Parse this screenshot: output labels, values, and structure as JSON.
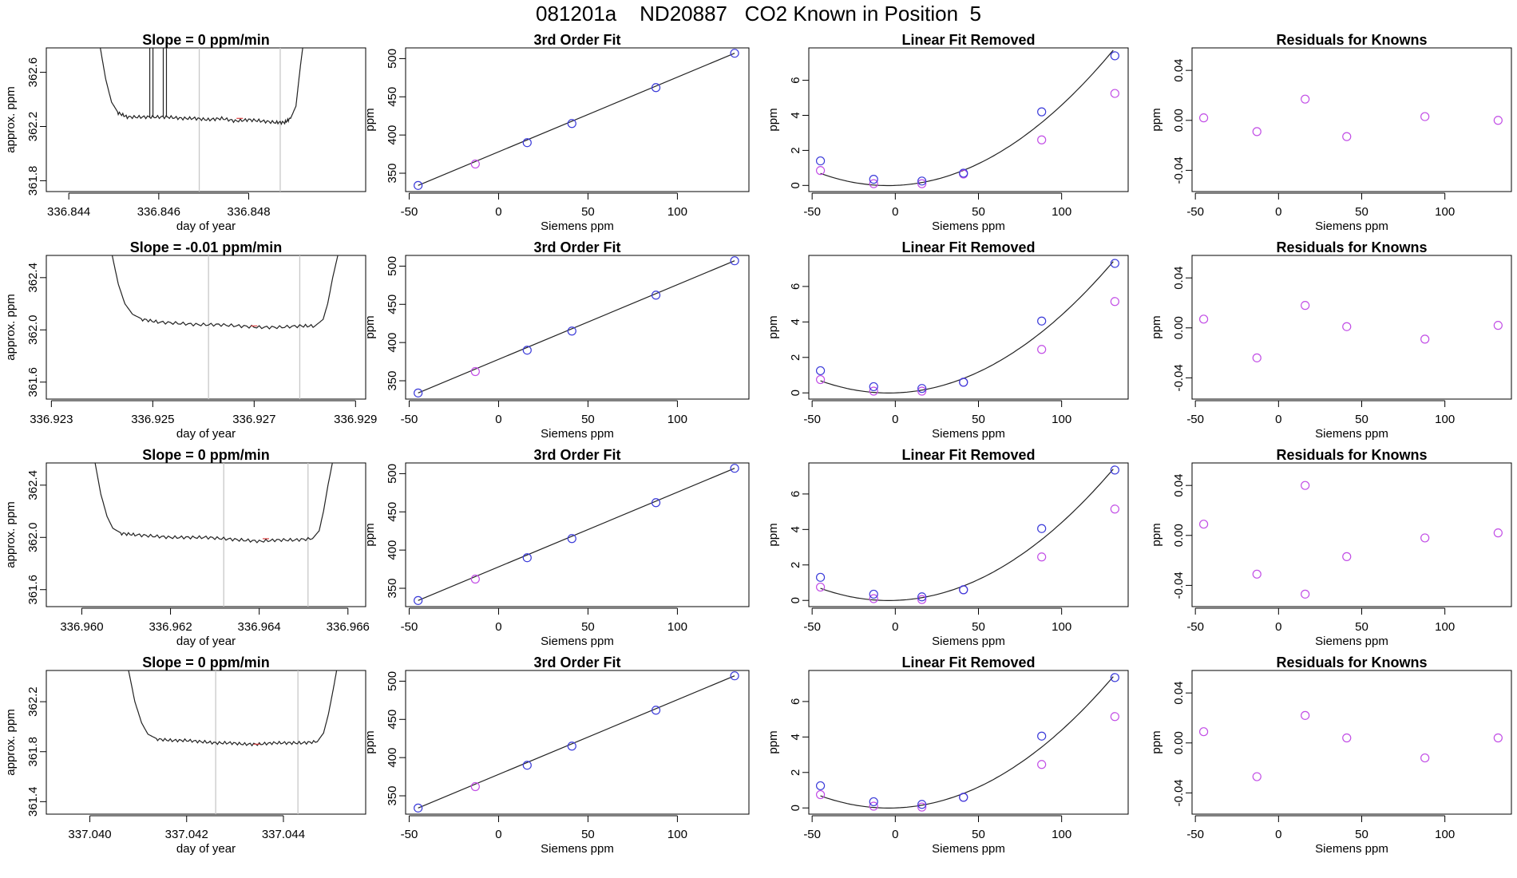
{
  "page_title": "081201a    ND20887   CO2 Known in Position  5",
  "colors": {
    "line": "#222222",
    "fit_points": "#3b3bd9",
    "known_points": "#c24ee6",
    "cursor_lines": "#c8c8c8",
    "small_mark": "#dd4444"
  },
  "chart_data": [
    {
      "row": 1,
      "type": "line",
      "title": "Slope =  0  ppm/min",
      "xlabel": "day of year",
      "ylabel": "approx. ppm",
      "xticks": [
        "336.844",
        "336.846",
        "336.848"
      ],
      "xtick_values": [
        336.844,
        336.846,
        336.848
      ],
      "yticks": [
        "361.8",
        "362.2",
        "362.6"
      ],
      "ytick_values": [
        361.8,
        362.2,
        362.6
      ],
      "xlim": [
        336.8435,
        336.8506
      ],
      "ylim": [
        361.72,
        362.78
      ],
      "cursor_lines": [
        336.8469,
        336.8487
      ],
      "spikes": [
        336.8458,
        336.8461
      ],
      "x": [
        336.8447,
        336.84482,
        336.84495,
        336.8451,
        336.8453,
        336.8456,
        336.8459,
        336.8462,
        336.8465,
        336.8468,
        336.8471,
        336.8474,
        336.8477,
        336.848,
        336.8483,
        336.8486,
        336.8488,
        336.84893,
        336.84905,
        336.8491,
        336.84915,
        336.8492
      ],
      "y": [
        362.78,
        362.55,
        362.38,
        362.3,
        362.27,
        362.27,
        362.27,
        362.27,
        362.26,
        362.26,
        362.25,
        362.26,
        362.24,
        362.25,
        362.24,
        362.23,
        362.23,
        362.26,
        362.35,
        362.5,
        362.65,
        362.78
      ]
    },
    {
      "row": 2,
      "type": "line",
      "title": "Slope =  -0.01  ppm/min",
      "xlabel": "day of year",
      "ylabel": "approx. ppm",
      "xticks": [
        "336.923",
        "336.925",
        "336.927",
        "336.929"
      ],
      "xtick_values": [
        336.923,
        336.925,
        336.927,
        336.929
      ],
      "yticks": [
        "361.6",
        "362.0",
        "362.4"
      ],
      "ytick_values": [
        361.6,
        362.0,
        362.4
      ],
      "xlim": [
        336.9229,
        336.9292
      ],
      "ylim": [
        361.47,
        362.57
      ],
      "cursor_lines": [
        336.9261,
        336.9279
      ],
      "spikes": [],
      "x": [
        336.9242,
        336.92432,
        336.92445,
        336.9246,
        336.9248,
        336.9251,
        336.9255,
        336.9259,
        336.9263,
        336.9267,
        336.9271,
        336.9275,
        336.9279,
        336.9282,
        336.92836,
        336.92845,
        336.92855,
        336.92865
      ],
      "y": [
        362.57,
        362.35,
        362.2,
        362.12,
        362.08,
        362.06,
        362.05,
        362.04,
        362.04,
        362.03,
        362.02,
        362.02,
        362.03,
        362.03,
        362.08,
        362.2,
        362.4,
        362.57
      ]
    },
    {
      "row": 3,
      "type": "line",
      "title": "Slope =  0  ppm/min",
      "xlabel": "day of year",
      "ylabel": "approx. ppm",
      "xticks": [
        "336.960",
        "336.962",
        "336.964",
        "336.966"
      ],
      "xtick_values": [
        336.96,
        336.962,
        336.964,
        336.966
      ],
      "yticks": [
        "361.6",
        "362.0",
        "362.4"
      ],
      "ytick_values": [
        361.6,
        362.0,
        362.4
      ],
      "xlim": [
        336.9592,
        336.9664
      ],
      "ylim": [
        361.47,
        362.57
      ],
      "cursor_lines": [
        336.9632,
        336.9651
      ],
      "spikes": [],
      "x": [
        336.9603,
        336.96043,
        336.96057,
        336.9607,
        336.9609,
        336.9612,
        336.9616,
        336.962,
        336.9624,
        336.9628,
        336.9632,
        336.9636,
        336.964,
        336.9644,
        336.9648,
        336.9652,
        336.96535,
        336.96545,
        336.96555,
        336.96565
      ],
      "y": [
        362.57,
        362.33,
        362.16,
        362.07,
        362.03,
        362.02,
        362.01,
        362.0,
        362.0,
        362.0,
        361.99,
        361.98,
        361.97,
        361.98,
        361.98,
        361.99,
        362.05,
        362.2,
        362.4,
        362.57
      ]
    },
    {
      "row": 4,
      "type": "line",
      "title": "Slope =  0  ppm/min",
      "xlabel": "day of year",
      "ylabel": "approx. ppm",
      "xticks": [
        "337.040",
        "337.042",
        "337.044"
      ],
      "xtick_values": [
        337.04,
        337.042,
        337.044
      ],
      "yticks": [
        "361.4",
        "361.8",
        "362.2"
      ],
      "ytick_values": [
        361.4,
        361.8,
        362.2
      ],
      "xlim": [
        337.0391,
        337.0457
      ],
      "ylim": [
        361.3,
        362.45
      ],
      "cursor_lines": [
        337.0426,
        337.0443
      ],
      "spikes": [],
      "x": [
        337.0408,
        337.04093,
        337.04107,
        337.0412,
        337.0414,
        337.0417,
        337.042,
        337.0423,
        337.0426,
        337.0429,
        337.0432,
        337.0435,
        337.0438,
        337.0441,
        337.0444,
        337.0447,
        337.04483,
        337.04493,
        337.04503,
        337.0451
      ],
      "y": [
        362.45,
        362.2,
        362.03,
        361.94,
        361.9,
        361.89,
        361.89,
        361.88,
        361.87,
        361.87,
        361.86,
        361.86,
        361.87,
        361.87,
        361.87,
        361.88,
        361.95,
        362.1,
        362.3,
        362.45
      ]
    },
    {
      "row": "all",
      "type": "scatter",
      "title": "3rd Order Fit",
      "xlabel": "Siemens ppm",
      "ylabel": "ppm",
      "xticks": [
        "-50",
        "0",
        "50",
        "100"
      ],
      "xtick_values": [
        -50,
        0,
        50,
        100
      ],
      "yticks": [
        "350",
        "400",
        "450",
        "500"
      ],
      "ytick_values": [
        350,
        400,
        450,
        500
      ],
      "xlim": [
        -52,
        140
      ],
      "ylim": [
        326,
        514
      ],
      "fit_x": [
        -45,
        16,
        41,
        88,
        132
      ],
      "fit_y": [
        334,
        390,
        415,
        462,
        507
      ],
      "known_x": [
        -13
      ],
      "known_y": [
        362
      ]
    },
    {
      "row": 1,
      "type": "scatter",
      "title": "Linear Fit Removed",
      "xlabel": "Siemens ppm",
      "ylabel": "ppm",
      "xticks": [
        "-50",
        "0",
        "50",
        "100"
      ],
      "xtick_values": [
        -50,
        0,
        50,
        100
      ],
      "yticks": [
        "0",
        "2",
        "4",
        "6"
      ],
      "ytick_values": [
        0,
        2,
        4,
        6
      ],
      "xlim": [
        -52,
        140
      ],
      "ylim": [
        -0.35,
        7.85
      ],
      "fit_x": [
        -45,
        -13,
        16,
        41,
        88,
        132
      ],
      "fit_y": [
        1.4,
        0.35,
        0.25,
        0.7,
        4.2,
        7.4
      ],
      "known_x": [
        -45,
        -13,
        16,
        41,
        88,
        132
      ],
      "known_y": [
        0.85,
        0.1,
        0.1,
        0.65,
        2.6,
        5.25
      ],
      "curve": [
        0.0004216,
        0.0037,
        0.0
      ]
    },
    {
      "row": 2,
      "type": "scatter",
      "title": "Linear Fit Removed",
      "xlabel": "Siemens ppm",
      "ylabel": "ppm",
      "xticks": [
        "-50",
        "0",
        "50",
        "100"
      ],
      "xtick_values": [
        -50,
        0,
        50,
        100
      ],
      "yticks": [
        "0",
        "2",
        "4",
        "6"
      ],
      "ytick_values": [
        0,
        2,
        4,
        6
      ],
      "xlim": [
        -52,
        140
      ],
      "ylim": [
        -0.35,
        7.75
      ],
      "fit_x": [
        -45,
        -13,
        16,
        41,
        88,
        132
      ],
      "fit_y": [
        1.25,
        0.35,
        0.25,
        0.6,
        4.05,
        7.3
      ],
      "known_x": [
        -45,
        -13,
        16,
        41,
        88,
        132
      ],
      "known_y": [
        0.75,
        0.1,
        0.1,
        0.6,
        2.45,
        5.15
      ],
      "curve": [
        0.0004069,
        0.0032,
        0.0
      ]
    },
    {
      "row": 3,
      "type": "scatter",
      "title": "Linear Fit Removed",
      "xlabel": "Siemens ppm",
      "ylabel": "ppm",
      "xticks": [
        "-50",
        "0",
        "50",
        "100"
      ],
      "xtick_values": [
        -50,
        0,
        50,
        100
      ],
      "yticks": [
        "0",
        "2",
        "4",
        "6"
      ],
      "ytick_values": [
        0,
        2,
        4,
        6
      ],
      "xlim": [
        -52,
        140
      ],
      "ylim": [
        -0.35,
        7.75
      ],
      "fit_x": [
        -45,
        -13,
        16,
        41,
        88,
        132
      ],
      "fit_y": [
        1.3,
        0.35,
        0.2,
        0.6,
        4.05,
        7.35
      ],
      "known_x": [
        -45,
        -13,
        16,
        41,
        88,
        132
      ],
      "known_y": [
        0.75,
        0.1,
        0.05,
        0.6,
        2.45,
        5.15
      ],
      "curve": [
        0.0004069,
        0.0032,
        0.0
      ]
    },
    {
      "row": 4,
      "type": "scatter",
      "title": "Linear Fit Removed",
      "xlabel": "Siemens ppm",
      "ylabel": "ppm",
      "xticks": [
        "-50",
        "0",
        "50",
        "100"
      ],
      "xtick_values": [
        -50,
        0,
        50,
        100
      ],
      "yticks": [
        "0",
        "2",
        "4",
        "6"
      ],
      "ytick_values": [
        0,
        2,
        4,
        6
      ],
      "xlim": [
        -52,
        140
      ],
      "ylim": [
        -0.35,
        7.75
      ],
      "fit_x": [
        -45,
        -13,
        16,
        41,
        88,
        132
      ],
      "fit_y": [
        1.25,
        0.35,
        0.2,
        0.6,
        4.05,
        7.35
      ],
      "known_x": [
        -45,
        -13,
        16,
        41,
        88,
        132
      ],
      "known_y": [
        0.75,
        0.1,
        0.05,
        0.6,
        2.45,
        5.15
      ],
      "curve": [
        0.0004069,
        0.0032,
        0.0
      ]
    },
    {
      "row": 1,
      "type": "scatter",
      "title": "Residuals for Knowns",
      "xlabel": "Siemens ppm",
      "ylabel": "ppm",
      "xticks": [
        "-50",
        "0",
        "50",
        "100"
      ],
      "xtick_values": [
        -50,
        0,
        50,
        100
      ],
      "yticks": [
        "-0.04",
        "0.00",
        "0.04"
      ],
      "ytick_values": [
        -0.04,
        0.0,
        0.04
      ],
      "xlim": [
        -52,
        140
      ],
      "ylim": [
        -0.057,
        0.058
      ],
      "known_x": [
        -45,
        -13,
        16,
        41,
        88,
        132
      ],
      "known_y": [
        0.002,
        -0.009,
        0.017,
        -0.013,
        0.003,
        0.0
      ]
    },
    {
      "row": 2,
      "type": "scatter",
      "title": "Residuals for Knowns",
      "xlabel": "Siemens ppm",
      "ylabel": "ppm",
      "xticks": [
        "-50",
        "0",
        "50",
        "100"
      ],
      "xtick_values": [
        -50,
        0,
        50,
        100
      ],
      "yticks": [
        "-0.04",
        "0.00",
        "0.04"
      ],
      "ytick_values": [
        -0.04,
        0.0,
        0.04
      ],
      "xlim": [
        -52,
        140
      ],
      "ylim": [
        -0.057,
        0.058
      ],
      "known_x": [
        -45,
        -13,
        16,
        41,
        88,
        132
      ],
      "known_y": [
        0.007,
        -0.024,
        0.018,
        0.001,
        -0.009,
        0.002
      ]
    },
    {
      "row": 3,
      "type": "scatter",
      "title": "Residuals for Knowns",
      "xlabel": "Siemens ppm",
      "ylabel": "ppm",
      "xticks": [
        "-50",
        "0",
        "50",
        "100"
      ],
      "xtick_values": [
        -50,
        0,
        50,
        100
      ],
      "yticks": [
        "-0.04",
        "0.00",
        "0.04"
      ],
      "ytick_values": [
        -0.04,
        0.0,
        0.04
      ],
      "xlim": [
        -52,
        140
      ],
      "ylim": [
        -0.057,
        0.058
      ],
      "known_x": [
        -45,
        -13,
        16,
        16,
        41,
        88,
        132
      ],
      "known_y": [
        0.009,
        -0.031,
        0.04,
        -0.047,
        -0.017,
        -0.002,
        0.002
      ]
    },
    {
      "row": 4,
      "type": "scatter",
      "title": "Residuals for Knowns",
      "xlabel": "Siemens ppm",
      "ylabel": "ppm",
      "xticks": [
        "-50",
        "0",
        "50",
        "100"
      ],
      "xtick_values": [
        -50,
        0,
        50,
        100
      ],
      "yticks": [
        "-0.04",
        "0.00",
        "0.04"
      ],
      "ytick_values": [
        -0.04,
        0.0,
        0.04
      ],
      "xlim": [
        -52,
        140
      ],
      "ylim": [
        -0.057,
        0.058
      ],
      "known_x": [
        -45,
        -13,
        16,
        41,
        88,
        132
      ],
      "known_y": [
        0.009,
        -0.027,
        0.022,
        0.004,
        -0.012,
        0.004
      ]
    }
  ]
}
